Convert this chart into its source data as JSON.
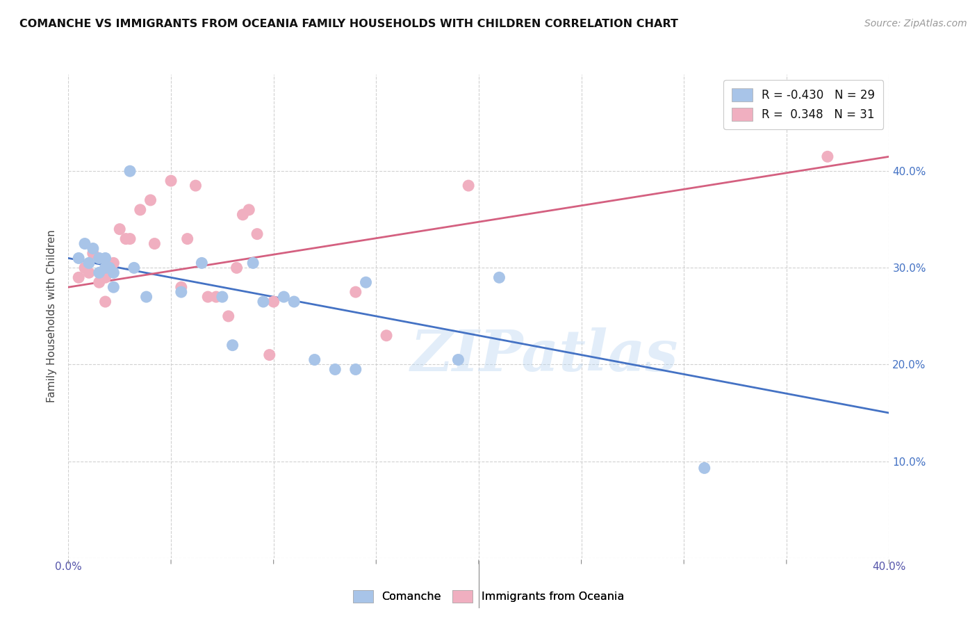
{
  "title": "COMANCHE VS IMMIGRANTS FROM OCEANIA FAMILY HOUSEHOLDS WITH CHILDREN CORRELATION CHART",
  "source": "Source: ZipAtlas.com",
  "ylabel": "Family Households with Children",
  "xlim": [
    0.0,
    0.4
  ],
  "ylim": [
    0.0,
    0.5
  ],
  "xticks": [
    0.0,
    0.05,
    0.1,
    0.15,
    0.2,
    0.25,
    0.3,
    0.35,
    0.4
  ],
  "yticks": [
    0.0,
    0.1,
    0.2,
    0.3,
    0.4
  ],
  "blue_color": "#a8c4e8",
  "pink_color": "#f0afc0",
  "blue_line_color": "#4472c4",
  "pink_line_color": "#d46080",
  "legend_blue_R": "-0.430",
  "legend_blue_N": "29",
  "legend_pink_R": "0.348",
  "legend_pink_N": "31",
  "watermark": "ZIPatlas",
  "comanche_x": [
    0.005,
    0.008,
    0.01,
    0.012,
    0.015,
    0.015,
    0.018,
    0.018,
    0.02,
    0.022,
    0.022,
    0.03,
    0.032,
    0.038,
    0.055,
    0.065,
    0.075,
    0.08,
    0.09,
    0.095,
    0.105,
    0.11,
    0.12,
    0.13,
    0.14,
    0.145,
    0.19,
    0.21,
    0.31
  ],
  "comanche_y": [
    0.31,
    0.325,
    0.305,
    0.32,
    0.31,
    0.295,
    0.31,
    0.3,
    0.3,
    0.295,
    0.28,
    0.4,
    0.3,
    0.27,
    0.275,
    0.305,
    0.27,
    0.22,
    0.305,
    0.265,
    0.27,
    0.265,
    0.205,
    0.195,
    0.195,
    0.285,
    0.205,
    0.29,
    0.093
  ],
  "oceania_x": [
    0.005,
    0.008,
    0.01,
    0.012,
    0.015,
    0.018,
    0.018,
    0.022,
    0.025,
    0.028,
    0.03,
    0.035,
    0.04,
    0.042,
    0.05,
    0.055,
    0.058,
    0.062,
    0.068,
    0.072,
    0.078,
    0.082,
    0.085,
    0.088,
    0.092,
    0.098,
    0.1,
    0.14,
    0.155,
    0.195,
    0.37
  ],
  "oceania_y": [
    0.29,
    0.3,
    0.295,
    0.315,
    0.285,
    0.29,
    0.265,
    0.305,
    0.34,
    0.33,
    0.33,
    0.36,
    0.37,
    0.325,
    0.39,
    0.28,
    0.33,
    0.385,
    0.27,
    0.27,
    0.25,
    0.3,
    0.355,
    0.36,
    0.335,
    0.21,
    0.265,
    0.275,
    0.23,
    0.385,
    0.415
  ],
  "blue_trend_x": [
    0.0,
    0.4
  ],
  "blue_trend_y": [
    0.31,
    0.15
  ],
  "pink_trend_x": [
    0.0,
    0.4
  ],
  "pink_trend_y": [
    0.28,
    0.415
  ]
}
